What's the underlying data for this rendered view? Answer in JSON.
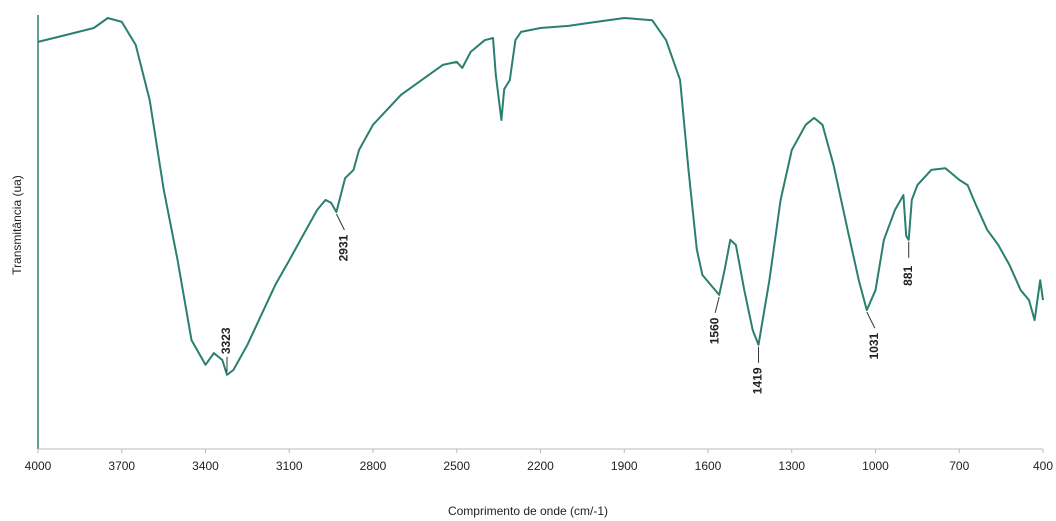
{
  "chart_data": {
    "type": "line",
    "x_label": "Comprimento de onde (cm/-1)",
    "y_label": "Transmitância (ua)",
    "xlim": [
      4000,
      400
    ],
    "xticks": [
      4000,
      3700,
      3400,
      3100,
      2800,
      2500,
      2200,
      1900,
      1600,
      1300,
      1000,
      700,
      400
    ],
    "ylim": [
      0,
      100
    ],
    "x": [
      4000,
      3900,
      3800,
      3750,
      3700,
      3650,
      3600,
      3550,
      3500,
      3450,
      3400,
      3370,
      3340,
      3323,
      3300,
      3250,
      3200,
      3150,
      3100,
      3050,
      3000,
      2970,
      2950,
      2931,
      2900,
      2870,
      2850,
      2800,
      2700,
      2600,
      2550,
      2500,
      2480,
      2450,
      2400,
      2370,
      2360,
      2340,
      2330,
      2310,
      2290,
      2270,
      2200,
      2100,
      2000,
      1900,
      1800,
      1750,
      1700,
      1670,
      1640,
      1620,
      1560,
      1540,
      1520,
      1500,
      1470,
      1440,
      1419,
      1380,
      1340,
      1300,
      1250,
      1220,
      1190,
      1150,
      1100,
      1060,
      1031,
      1000,
      970,
      930,
      900,
      890,
      881,
      870,
      850,
      800,
      750,
      720,
      700,
      670,
      640,
      600,
      560,
      520,
      480,
      450,
      430,
      410,
      400
    ],
    "series": [
      {
        "name": "Transmitância",
        "color": "#2a7f70",
        "values": [
          93.8,
          95.4,
          97,
          99.3,
          98.4,
          93.1,
          80.4,
          59.9,
          43.5,
          25.1,
          19.4,
          22.1,
          20.5,
          17.1,
          18.2,
          24.0,
          30.9,
          37.8,
          43.5,
          49.3,
          55.1,
          57.4,
          56.7,
          54.6,
          62.4,
          64.3,
          68.9,
          74.7,
          81.6,
          86.2,
          88.5,
          89.2,
          87.8,
          91.5,
          94.2,
          94.7,
          86.2,
          75.8,
          82.9,
          85.0,
          94.2,
          96.1,
          97,
          97.5,
          98.4,
          99.3,
          98.8,
          94.2,
          85,
          64.3,
          46,
          40.1,
          35.5,
          41.5,
          48.2,
          47,
          36.6,
          27.4,
          24.0,
          38.9,
          57.4,
          68.9,
          74.7,
          76.3,
          74.7,
          65.4,
          50.5,
          38.9,
          32.0,
          36.6,
          48.2,
          55.1,
          58.5,
          49.1,
          48.2,
          57.4,
          60.8,
          64.3,
          64.7,
          63.1,
          62,
          60.8,
          56.2,
          50.5,
          47,
          42.4,
          36.6,
          34.3,
          29.7,
          38.9,
          34.3
        ]
      }
    ],
    "peak_labels": [
      3323,
      2931,
      1560,
      1419,
      1031,
      881
    ]
  }
}
